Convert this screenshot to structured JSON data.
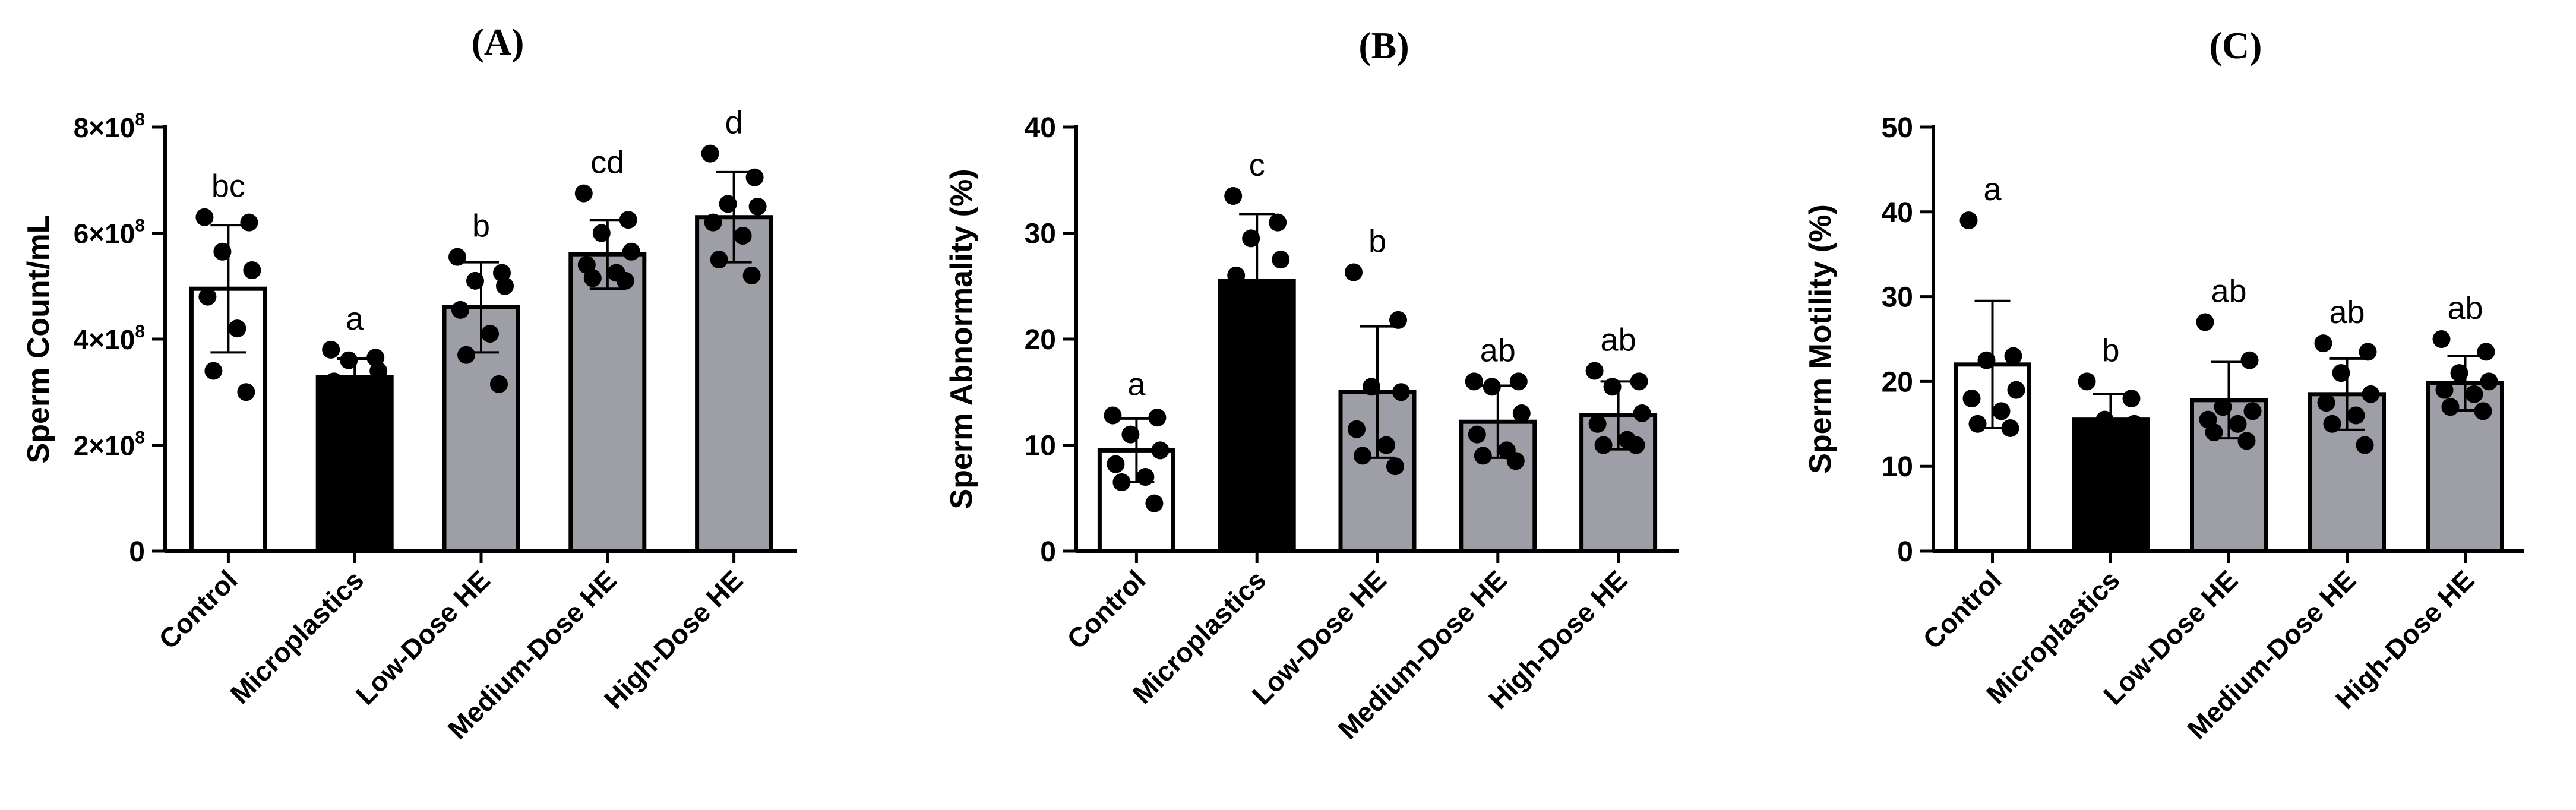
{
  "chart_data": [
    {
      "panel": "(A)",
      "type": "bar",
      "title": "(A)",
      "xlabel": "",
      "ylabel": "Sperm Count/mL",
      "ylim": [
        0,
        800000000
      ],
      "yticks": [
        0,
        200000000,
        400000000,
        600000000,
        800000000
      ],
      "ytick_labels": [
        "0",
        "2×10⁸",
        "4×10⁸",
        "6×10⁸",
        "8×10⁸"
      ],
      "categories": [
        "Control",
        "Microplastics",
        "Low-Dose HE",
        "Medium-Dose HE",
        "High-Dose HE"
      ],
      "values": [
        495000000,
        328000000,
        460000000,
        560000000,
        630000000
      ],
      "errors": [
        120000000,
        35000000,
        85000000,
        65000000,
        85000000
      ],
      "bar_colors": [
        "#ffffff",
        "#000000",
        "#9e9ea6",
        "#9e9ea6",
        "#9e9ea6"
      ],
      "significance": [
        "bc",
        "a",
        "b",
        "cd",
        "d"
      ],
      "points": [
        [
          630000000,
          620000000,
          565000000,
          530000000,
          480000000,
          420000000,
          340000000,
          300000000
        ],
        [
          380000000,
          365000000,
          360000000,
          340000000,
          320000000,
          310000000,
          300000000,
          295000000
        ],
        [
          555000000,
          525000000,
          510000000,
          500000000,
          455000000,
          410000000,
          370000000,
          315000000
        ],
        [
          675000000,
          625000000,
          600000000,
          565000000,
          540000000,
          525000000,
          515000000,
          510000000
        ],
        [
          750000000,
          705000000,
          655000000,
          650000000,
          620000000,
          595000000,
          550000000,
          520000000
        ]
      ]
    },
    {
      "panel": "(B)",
      "type": "bar",
      "title": "(B)",
      "xlabel": "",
      "ylabel": "Sperm Abnormality (%)",
      "ylim": [
        0,
        40
      ],
      "yticks": [
        0,
        10,
        20,
        30,
        40
      ],
      "ytick_labels": [
        "0",
        "10",
        "20",
        "30",
        "40"
      ],
      "categories": [
        "Control",
        "Microplastics",
        "Low-Dose HE",
        "Medium-Dose HE",
        "High-Dose HE"
      ],
      "values": [
        9.5,
        25.5,
        15.0,
        12.2,
        12.8
      ],
      "errors": [
        3.0,
        6.3,
        6.2,
        3.4,
        3.2
      ],
      "bar_colors": [
        "#ffffff",
        "#000000",
        "#9e9ea6",
        "#9e9ea6",
        "#9e9ea6"
      ],
      "significance": [
        "a",
        "c",
        "b",
        "ab",
        "ab"
      ],
      "points": [
        [
          12.8,
          12.6,
          11.0,
          9.5,
          8.2,
          7.0,
          6.5,
          4.5
        ],
        [
          33.5,
          31.0,
          29.5,
          27.5,
          26.0
        ],
        [
          26.3,
          21.8,
          15.5,
          15.0,
          11.5,
          10.0,
          9.0,
          8.0
        ],
        [
          16.0,
          16.0,
          15.5,
          13.0,
          11.0,
          9.5,
          9.0,
          8.5
        ],
        [
          17.0,
          16.0,
          15.5,
          13.0,
          12.0,
          10.5,
          10.0,
          10.0
        ]
      ]
    },
    {
      "panel": "(C)",
      "type": "bar",
      "title": "(C)",
      "xlabel": "",
      "ylabel": "Sperm Motility (%)",
      "ylim": [
        0,
        50
      ],
      "yticks": [
        0,
        10,
        20,
        30,
        40,
        50
      ],
      "ytick_labels": [
        "0",
        "10",
        "20",
        "30",
        "40",
        "50"
      ],
      "categories": [
        "Control",
        "Microplastics",
        "Low-Dose HE",
        "Medium-Dose HE",
        "High-Dose HE"
      ],
      "values": [
        22.0,
        15.5,
        17.8,
        18.5,
        19.8
      ],
      "errors": [
        7.5,
        3.0,
        4.5,
        4.2,
        3.2
      ],
      "bar_colors": [
        "#ffffff",
        "#000000",
        "#9e9ea6",
        "#9e9ea6",
        "#9e9ea6"
      ],
      "significance": [
        "a",
        "b",
        "ab",
        "ab",
        "ab"
      ],
      "points": [
        [
          39.0,
          23.0,
          22.5,
          19.0,
          18.0,
          16.5,
          15.0,
          14.5
        ],
        [
          20.0,
          18.0,
          15.5,
          15.0,
          14.5
        ],
        [
          27.0,
          22.5,
          17.0,
          16.5,
          15.5,
          15.0,
          14.0,
          13.0
        ],
        [
          24.5,
          23.5,
          21.0,
          18.5,
          17.5,
          16.0,
          15.0,
          12.5
        ],
        [
          25.0,
          23.5,
          21.0,
          20.0,
          19.0,
          18.5,
          17.0,
          16.5
        ]
      ]
    }
  ]
}
